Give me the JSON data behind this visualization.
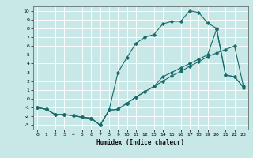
{
  "title": "",
  "xlabel": "Humidex (Indice chaleur)",
  "bg_color": "#c8e8e8",
  "grid_color": "#ffffff",
  "line_color": "#1a6b6b",
  "xlim": [
    -0.5,
    23.5
  ],
  "ylim": [
    -3.5,
    10.5
  ],
  "xticks": [
    0,
    1,
    2,
    3,
    4,
    5,
    6,
    7,
    8,
    9,
    10,
    11,
    12,
    13,
    14,
    15,
    16,
    17,
    18,
    19,
    20,
    21,
    22,
    23
  ],
  "yticks": [
    -3,
    -2,
    -1,
    0,
    1,
    2,
    3,
    4,
    5,
    6,
    7,
    8,
    9,
    10
  ],
  "line1_x": [
    0,
    1,
    2,
    3,
    4,
    5,
    6,
    7,
    8,
    9,
    10,
    11,
    12,
    13,
    14,
    15,
    16,
    17,
    18,
    19,
    20,
    21,
    22,
    23
  ],
  "line1_y": [
    -1,
    -1.2,
    -1.8,
    -1.8,
    -1.9,
    -2.1,
    -2.2,
    -3.0,
    -1.3,
    3.0,
    4.7,
    6.3,
    7.0,
    7.3,
    8.5,
    8.8,
    8.8,
    10.0,
    9.8,
    8.6,
    8.0,
    2.7,
    2.5,
    1.3
  ],
  "line2_x": [
    0,
    1,
    2,
    3,
    4,
    5,
    6,
    7,
    8,
    9,
    10,
    11,
    12,
    13,
    14,
    15,
    16,
    17,
    18,
    19,
    20,
    21,
    22,
    23
  ],
  "line2_y": [
    -1,
    -1.2,
    -1.8,
    -1.8,
    -1.9,
    -2.1,
    -2.2,
    -3.0,
    -1.3,
    -1.2,
    -0.5,
    0.2,
    0.8,
    1.4,
    2.0,
    2.6,
    3.1,
    3.7,
    4.2,
    4.8,
    5.2,
    5.6,
    6.0,
    1.4
  ],
  "line3_x": [
    0,
    1,
    2,
    3,
    4,
    5,
    6,
    7,
    8,
    9,
    10,
    11,
    12,
    13,
    14,
    15,
    16,
    17,
    18,
    19,
    20,
    21,
    22,
    23
  ],
  "line3_y": [
    -1,
    -1.2,
    -1.8,
    -1.8,
    -1.9,
    -2.1,
    -2.2,
    -3.0,
    -1.3,
    -1.2,
    -0.5,
    0.2,
    0.8,
    1.4,
    2.5,
    3.0,
    3.5,
    4.0,
    4.5,
    5.0,
    7.9,
    2.7,
    2.5,
    1.3
  ]
}
